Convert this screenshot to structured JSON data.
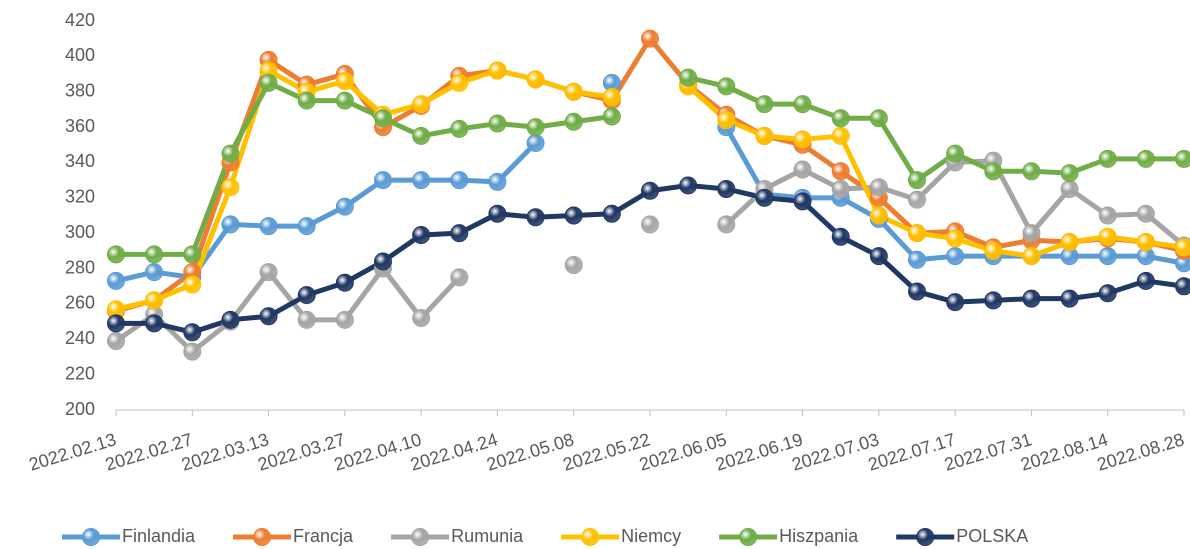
{
  "chart_data": {
    "type": "line",
    "categories": [
      "2022.02.13",
      null,
      "2022.02.27",
      null,
      "2022.03.13",
      null,
      "2022.03.27",
      null,
      "2022.04.10",
      null,
      "2022.04.24",
      null,
      "2022.05.08",
      null,
      "2022.05.22",
      null,
      "2022.06.05",
      null,
      "2022.06.19",
      null,
      "2022.07.03",
      null,
      "2022.07.17",
      null,
      "2022.07.31",
      null,
      "2022.08.14",
      null,
      "2022.08.28"
    ],
    "series": [
      {
        "name": "Finlandia",
        "color": "#5b9bd5",
        "values": [
          273,
          278,
          275,
          305,
          304,
          304,
          315,
          330,
          330,
          330,
          329,
          351,
          null,
          385,
          null,
          null,
          360,
          322,
          320,
          320,
          308,
          285,
          287,
          287,
          287,
          287,
          287,
          287,
          283
        ]
      },
      {
        "name": "Francja",
        "color": "#ed7d31",
        "values": [
          256,
          262,
          278,
          340,
          398,
          384,
          390,
          360,
          372,
          389,
          392,
          387,
          380,
          375,
          410,
          384,
          367,
          355,
          350,
          335,
          320,
          300,
          301,
          292,
          296,
          295,
          297,
          295,
          290
        ]
      },
      {
        "name": "Rumunia",
        "color": "#a5a5a5",
        "values": [
          239,
          254,
          233,
          250,
          278,
          251,
          251,
          280,
          252,
          275,
          null,
          null,
          282,
          null,
          305,
          null,
          305,
          325,
          336,
          325,
          326,
          319,
          340,
          341,
          300,
          325,
          310,
          311,
          293
        ]
      },
      {
        "name": "Niemcy",
        "color": "#ffc000",
        "values": [
          257,
          262,
          271,
          326,
          392,
          380,
          386,
          367,
          373,
          385,
          392,
          387,
          380,
          377,
          null,
          383,
          364,
          355,
          353,
          355,
          310,
          300,
          297,
          290,
          287,
          295,
          298,
          295,
          292
        ]
      },
      {
        "name": "Hiszpania",
        "color": "#70ad47",
        "values": [
          288,
          288,
          288,
          345,
          385,
          375,
          375,
          365,
          355,
          359,
          362,
          360,
          363,
          366,
          null,
          388,
          383,
          373,
          373,
          365,
          365,
          330,
          345,
          335,
          335,
          334,
          342,
          342,
          342
        ]
      },
      {
        "name": "POLSKA",
        "color": "#203864",
        "values": [
          249,
          249,
          244,
          251,
          253,
          265,
          272,
          284,
          299,
          300,
          311,
          309,
          310,
          311,
          324,
          327,
          325,
          320,
          318,
          298,
          287,
          267,
          261,
          262,
          263,
          263,
          266,
          273,
          270
        ]
      }
    ],
    "ylim": [
      200,
      420
    ],
    "yticks": [
      200,
      220,
      240,
      260,
      280,
      300,
      320,
      340,
      360,
      380,
      400,
      420
    ],
    "grid": false
  }
}
